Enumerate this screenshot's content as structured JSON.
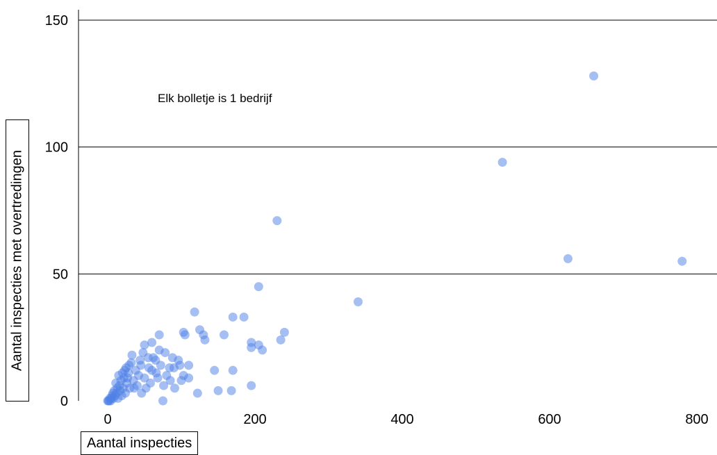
{
  "chart_data": {
    "type": "scatter",
    "title": "",
    "xlabel": "Aantal inspecties",
    "ylabel": "Aantal inspecties met overtredingen",
    "annotation": "Elk bolletje is 1 bedrijf",
    "xlim": [
      -10,
      800
    ],
    "ylim": [
      0,
      150
    ],
    "xticks": [
      0,
      200,
      400,
      600,
      800
    ],
    "yticks": [
      0,
      50,
      100,
      150
    ],
    "grid": "horizontal",
    "point_color": "#4d7fe6",
    "points": [
      [
        660,
        128
      ],
      [
        536,
        94
      ],
      [
        230,
        71
      ],
      [
        625,
        56
      ],
      [
        780,
        55
      ],
      [
        205,
        45
      ],
      [
        340,
        39
      ],
      [
        118,
        35
      ],
      [
        170,
        33
      ],
      [
        185,
        33
      ],
      [
        70,
        26
      ],
      [
        103,
        27
      ],
      [
        125,
        28
      ],
      [
        130,
        26
      ],
      [
        158,
        26
      ],
      [
        240,
        27
      ],
      [
        235,
        24
      ],
      [
        195,
        23
      ],
      [
        205,
        22
      ],
      [
        210,
        20
      ],
      [
        195,
        21
      ],
      [
        132,
        24
      ],
      [
        105,
        26
      ],
      [
        60,
        23
      ],
      [
        50,
        22
      ],
      [
        145,
        12
      ],
      [
        170,
        12
      ],
      [
        195,
        6
      ],
      [
        168,
        4
      ],
      [
        150,
        4
      ],
      [
        122,
        3
      ],
      [
        75,
        0
      ],
      [
        110,
        9
      ],
      [
        100,
        8
      ],
      [
        110,
        14
      ],
      [
        98,
        14
      ],
      [
        90,
        13
      ],
      [
        85,
        8
      ],
      [
        80,
        10
      ],
      [
        70,
        20
      ],
      [
        65,
        16
      ],
      [
        60,
        12
      ],
      [
        55,
        17
      ],
      [
        50,
        9
      ],
      [
        45,
        14
      ],
      [
        42,
        10
      ],
      [
        40,
        6
      ],
      [
        38,
        12
      ],
      [
        35,
        8
      ],
      [
        32,
        15
      ],
      [
        30,
        5
      ],
      [
        28,
        11
      ],
      [
        26,
        7
      ],
      [
        25,
        13
      ],
      [
        24,
        3
      ],
      [
        22,
        9
      ],
      [
        21,
        5
      ],
      [
        20,
        11
      ],
      [
        19,
        2
      ],
      [
        18,
        8
      ],
      [
        17,
        4
      ],
      [
        16,
        6
      ],
      [
        15,
        10
      ],
      [
        14,
        1
      ],
      [
        13,
        5
      ],
      [
        12,
        3
      ],
      [
        11,
        7
      ],
      [
        10,
        2
      ],
      [
        9,
        4
      ],
      [
        8,
        1
      ],
      [
        7,
        3
      ],
      [
        6,
        2
      ],
      [
        5,
        1
      ],
      [
        4,
        0
      ],
      [
        3,
        1
      ],
      [
        2,
        0
      ],
      [
        1,
        0
      ],
      [
        0,
        0
      ],
      [
        33,
        18
      ],
      [
        48,
        19
      ],
      [
        62,
        17
      ],
      [
        78,
        19
      ],
      [
        88,
        17
      ],
      [
        96,
        16
      ],
      [
        84,
        13
      ],
      [
        72,
        14
      ],
      [
        66,
        11
      ],
      [
        58,
        7
      ],
      [
        52,
        5
      ],
      [
        46,
        3
      ],
      [
        44,
        16
      ],
      [
        36,
        5
      ],
      [
        29,
        14
      ],
      [
        27,
        9
      ],
      [
        23,
        12
      ],
      [
        91,
        5
      ],
      [
        103,
        10
      ],
      [
        76,
        6
      ],
      [
        68,
        9
      ],
      [
        56,
        13
      ]
    ]
  }
}
